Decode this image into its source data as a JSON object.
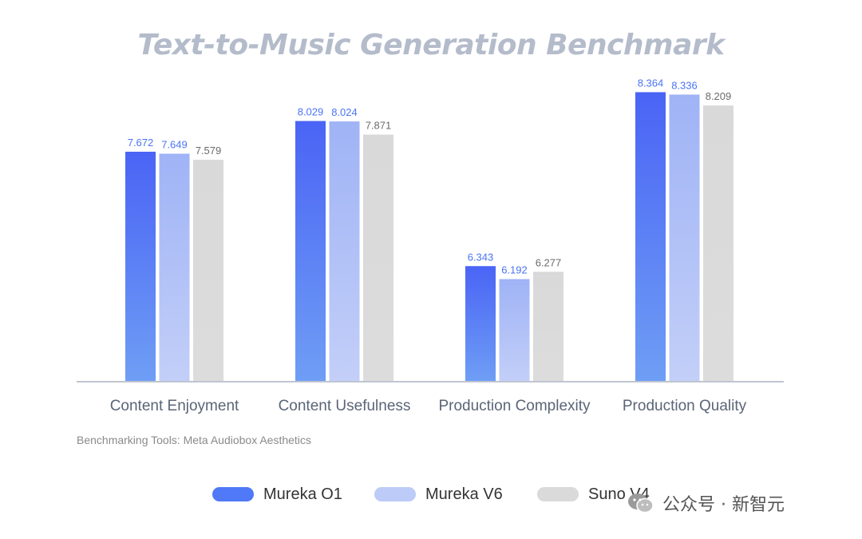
{
  "chart_data": {
    "type": "bar",
    "title": "Text-to-Music Generation Benchmark",
    "categories": [
      "Content Enjoyment",
      "Content Usefulness",
      "Production Complexity",
      "Production Quality"
    ],
    "series": [
      {
        "name": "Mureka O1",
        "values": [
          7.672,
          8.029,
          6.343,
          8.364
        ],
        "labels": [
          "7.672",
          "8.029",
          "6.343",
          "8.364"
        ],
        "color": "#4a66f5",
        "label_color": "#4b74f3"
      },
      {
        "name": "Mureka V6",
        "values": [
          7.649,
          8.024,
          6.192,
          8.336
        ],
        "labels": [
          "7.649",
          "8.024",
          "6.192",
          "8.336"
        ],
        "color": "#a6b8f6",
        "label_color": "#4b74f3"
      },
      {
        "name": "Suno V4",
        "values": [
          7.579,
          7.871,
          6.277,
          8.209
        ],
        "labels": [
          "7.579",
          "7.871",
          "6.277",
          "8.209"
        ],
        "color": "#dadada",
        "label_color": "#6b6b6b"
      }
    ],
    "ylim": [
      5,
      8.6
    ],
    "grid": false,
    "legend_position": "bottom-center",
    "xlabel": "",
    "ylabel": "",
    "note": "Benchmarking Tools: Meta Audiobox Aesthetics"
  },
  "watermark": {
    "text": "公众号 · 新智元",
    "icon": "wechat-icon"
  }
}
